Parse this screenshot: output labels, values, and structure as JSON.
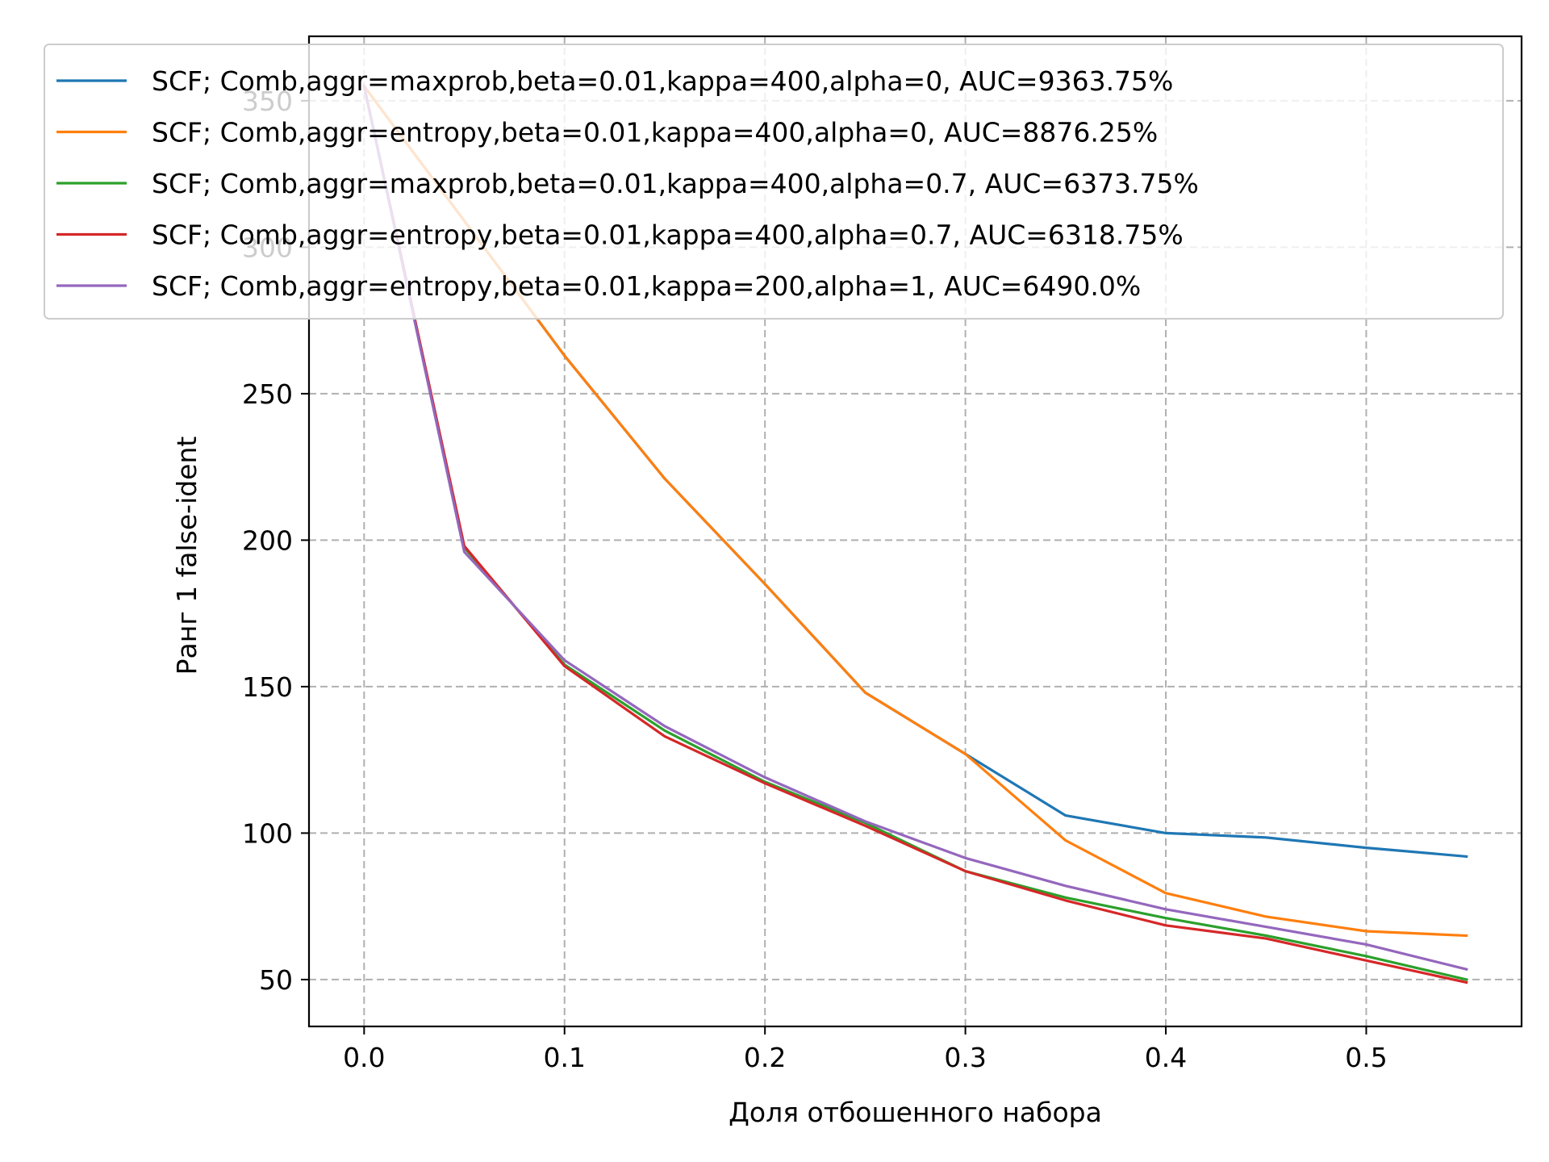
{
  "chart_data": {
    "type": "line",
    "title": "",
    "xlabel": "Доля отбошенного набора",
    "ylabel": "Ранг 1 false-ident",
    "xlim": [
      -0.0275,
      0.5775
    ],
    "ylim": [
      34,
      372
    ],
    "xticks": [
      0.0,
      0.1,
      0.2,
      0.3,
      0.4,
      0.5
    ],
    "xtick_labels": [
      "0.0",
      "0.1",
      "0.2",
      "0.3",
      "0.4",
      "0.5"
    ],
    "yticks": [
      50,
      100,
      150,
      200,
      250,
      300,
      350
    ],
    "ytick_labels": [
      "50",
      "100",
      "150",
      "200",
      "250",
      "300",
      "350"
    ],
    "grid": true,
    "legend_position": "top",
    "x": [
      0.0,
      0.05,
      0.1,
      0.15,
      0.2,
      0.25,
      0.3,
      0.35,
      0.4,
      0.45,
      0.5,
      0.55
    ],
    "series": [
      {
        "name": "SCF;  Comb,aggr=maxprob,beta=0.01,kappa=400,alpha=0, AUC=9363.75%",
        "color": "#1f77b4",
        "values": [
          355,
          309,
          263,
          221,
          185,
          148,
          127,
          106,
          100,
          98.5,
          95,
          92
        ]
      },
      {
        "name": "SCF;  Comb,aggr=entropy,beta=0.01,kappa=400,alpha=0, AUC=8876.25%",
        "color": "#ff7f0e",
        "values": [
          355,
          309,
          263,
          221,
          185,
          148,
          127,
          97.5,
          79.5,
          71.5,
          66.5,
          65
        ]
      },
      {
        "name": "SCF;  Comb,aggr=maxprob,beta=0.01,kappa=400,alpha=0.7, AUC=6373.75%",
        "color": "#2ca02c",
        "values": [
          355,
          197.5,
          157.5,
          135,
          117.5,
          103.5,
          87,
          78,
          71,
          65,
          58,
          50
        ]
      },
      {
        "name": "SCF;  Comb,aggr=entropy,beta=0.01,kappa=400,alpha=0.7, AUC=6318.75%",
        "color": "#d62728",
        "values": [
          355,
          198,
          157,
          133,
          117,
          102.5,
          87,
          77,
          68.5,
          64,
          56.5,
          49
        ]
      },
      {
        "name": "SCF;  Comb,aggr=entropy,beta=0.01,kappa=200,alpha=1, AUC=6490.0%",
        "color": "#9467bd",
        "values": [
          355,
          196,
          159,
          136.5,
          119,
          104,
          91.5,
          82,
          74,
          68,
          62,
          53.5
        ]
      }
    ]
  }
}
